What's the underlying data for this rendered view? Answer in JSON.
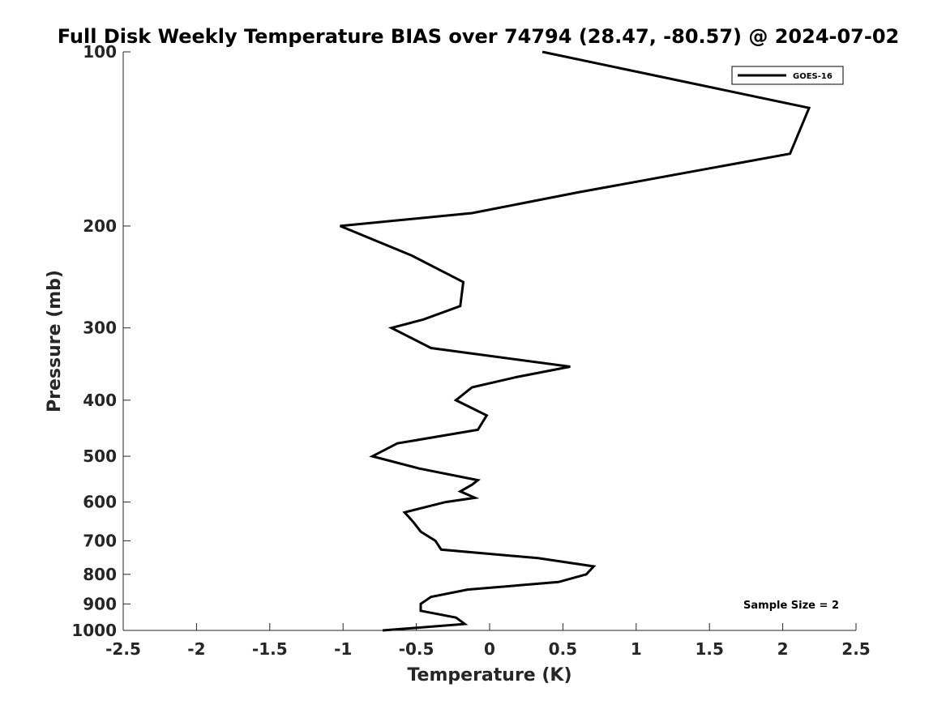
{
  "chart_data": {
    "type": "line",
    "title": "Full Disk Weekly Temperature BIAS over 74794 (28.47, -80.57) @ 2024-07-02",
    "xlabel": "Temperature (K)",
    "ylabel": "Pressure (mb)",
    "xlim": [
      -2.5,
      2.5
    ],
    "ylim": [
      100,
      1000
    ],
    "y_scale": "log",
    "y_reversed": true,
    "grid": false,
    "legend_position": "top-right",
    "x_ticks": [
      "-2.5",
      "-2",
      "-1.5",
      "-1",
      "-0.5",
      "0",
      "0.5",
      "1",
      "1.5",
      "2",
      "2.5"
    ],
    "y_ticks": [
      "100",
      "200",
      "300",
      "400",
      "500",
      "600",
      "700",
      "800",
      "900",
      "1000"
    ],
    "series": [
      {
        "name": "GOES-16",
        "color": "#000000",
        "points": [
          {
            "x": 0.36,
            "p": 100
          },
          {
            "x": 2.18,
            "p": 125
          },
          {
            "x": 2.05,
            "p": 150
          },
          {
            "x": 0.6,
            "p": 175
          },
          {
            "x": -0.12,
            "p": 190
          },
          {
            "x": -1.02,
            "p": 200
          },
          {
            "x": -0.53,
            "p": 225
          },
          {
            "x": -0.18,
            "p": 250
          },
          {
            "x": -0.2,
            "p": 275
          },
          {
            "x": -0.45,
            "p": 290
          },
          {
            "x": -0.67,
            "p": 300
          },
          {
            "x": -0.4,
            "p": 325
          },
          {
            "x": 0.55,
            "p": 350
          },
          {
            "x": 0.18,
            "p": 365
          },
          {
            "x": -0.12,
            "p": 380
          },
          {
            "x": -0.23,
            "p": 400
          },
          {
            "x": -0.02,
            "p": 425
          },
          {
            "x": -0.08,
            "p": 450
          },
          {
            "x": -0.63,
            "p": 475
          },
          {
            "x": -0.8,
            "p": 500
          },
          {
            "x": -0.48,
            "p": 525
          },
          {
            "x": -0.08,
            "p": 550
          },
          {
            "x": -0.12,
            "p": 560
          },
          {
            "x": -0.2,
            "p": 575
          },
          {
            "x": -0.1,
            "p": 590
          },
          {
            "x": -0.3,
            "p": 600
          },
          {
            "x": -0.58,
            "p": 625
          },
          {
            "x": -0.52,
            "p": 650
          },
          {
            "x": -0.47,
            "p": 675
          },
          {
            "x": -0.37,
            "p": 700
          },
          {
            "x": -0.33,
            "p": 725
          },
          {
            "x": 0.33,
            "p": 750
          },
          {
            "x": 0.71,
            "p": 775
          },
          {
            "x": 0.66,
            "p": 800
          },
          {
            "x": 0.47,
            "p": 825
          },
          {
            "x": -0.15,
            "p": 850
          },
          {
            "x": -0.4,
            "p": 875
          },
          {
            "x": -0.47,
            "p": 900
          },
          {
            "x": -0.47,
            "p": 925
          },
          {
            "x": -0.23,
            "p": 950
          },
          {
            "x": -0.17,
            "p": 975
          },
          {
            "x": -0.73,
            "p": 1000
          }
        ]
      }
    ],
    "annotations": [
      "Sample Size = 2"
    ]
  }
}
